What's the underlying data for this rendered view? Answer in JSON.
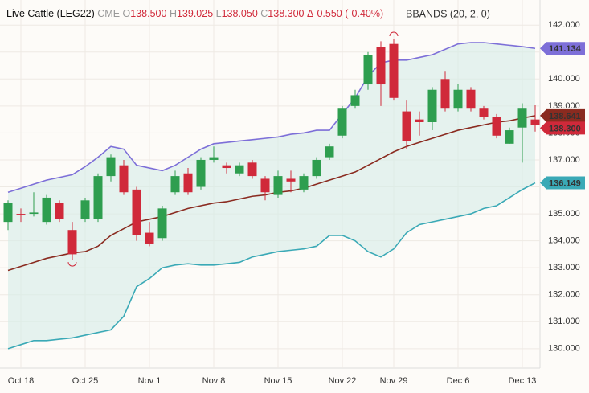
{
  "chart_data": {
    "type": "candlestick",
    "header": {
      "symbol": "Live Cattle (LEG22)",
      "exchange": "CME",
      "open": {
        "label": "O",
        "value": "138.500"
      },
      "high": {
        "label": "H",
        "value": "139.025"
      },
      "low": {
        "label": "L",
        "value": "138.050"
      },
      "close": {
        "label": "C",
        "value": "138.300"
      },
      "change": "Δ-0.550 (-0.40%)",
      "indicator": "BBANDS (20, 2, 0)"
    },
    "categories": [
      null,
      "Oct 18",
      null,
      null,
      null,
      null,
      "Oct 25",
      null,
      null,
      null,
      null,
      "Nov 1",
      null,
      null,
      null,
      null,
      "Nov 8",
      null,
      null,
      null,
      null,
      "Nov 15",
      null,
      null,
      null,
      null,
      "Nov 22",
      null,
      null,
      null,
      "Nov 29",
      null,
      null,
      null,
      null,
      "Dec 6",
      null,
      null,
      null,
      null,
      "Dec 13",
      null
    ],
    "ohlc": {
      "up_color": "#2e9e4f",
      "down_color": "#d0293a",
      "last_label": "138.300",
      "open": [
        134.7,
        135.0,
        135.0,
        134.7,
        135.4,
        134.4,
        134.8,
        134.8,
        136.4,
        136.8,
        135.9,
        134.3,
        134.1,
        135.8,
        136.5,
        136.0,
        137.0,
        136.8,
        136.5,
        136.9,
        136.3,
        135.7,
        136.3,
        135.9,
        136.4,
        137.1,
        137.9,
        139.0,
        139.8,
        141.2,
        141.3,
        138.8,
        138.5,
        138.4,
        140.0,
        138.9,
        139.6,
        138.9,
        138.6,
        137.6,
        138.2,
        138.5
      ],
      "high": [
        135.5,
        135.2,
        135.8,
        135.7,
        135.5,
        134.7,
        135.6,
        136.5,
        137.2,
        137.0,
        136.0,
        134.7,
        135.3,
        136.6,
        136.7,
        137.1,
        137.5,
        136.9,
        136.9,
        137.0,
        136.4,
        136.6,
        136.6,
        136.5,
        137.1,
        137.6,
        139.0,
        139.6,
        141.0,
        141.4,
        141.5,
        139.2,
        138.8,
        139.7,
        140.3,
        139.8,
        139.7,
        139.0,
        138.7,
        138.2,
        139.1,
        139.025
      ],
      "low": [
        134.4,
        134.7,
        134.9,
        134.6,
        134.7,
        133.3,
        134.7,
        134.7,
        136.2,
        135.7,
        134.0,
        133.8,
        134.0,
        135.7,
        135.7,
        135.9,
        136.9,
        136.5,
        136.4,
        136.3,
        135.5,
        135.6,
        135.8,
        135.8,
        136.3,
        137.0,
        137.8,
        138.9,
        139.6,
        139.0,
        139.2,
        137.4,
        137.9,
        138.1,
        138.8,
        138.8,
        138.8,
        138.5,
        137.8,
        137.6,
        136.9,
        138.05
      ],
      "close": [
        135.4,
        134.95,
        135.05,
        135.6,
        134.8,
        133.5,
        135.5,
        136.4,
        137.1,
        135.8,
        134.2,
        133.9,
        135.2,
        136.4,
        135.8,
        137.0,
        137.1,
        136.7,
        136.8,
        136.4,
        135.8,
        136.4,
        136.2,
        136.4,
        137.0,
        137.5,
        138.9,
        139.4,
        140.9,
        139.8,
        139.3,
        137.7,
        138.4,
        139.6,
        138.9,
        139.6,
        138.9,
        138.6,
        137.9,
        138.1,
        138.9,
        138.3
      ]
    },
    "series": [
      {
        "name": "upper",
        "color": "#7d6fd8",
        "last_label": "141.134",
        "values": [
          135.8,
          135.95,
          136.1,
          136.25,
          136.35,
          136.45,
          136.75,
          137.1,
          137.5,
          137.4,
          136.8,
          136.7,
          136.6,
          136.8,
          137.1,
          137.4,
          137.6,
          137.65,
          137.7,
          137.75,
          137.8,
          137.85,
          137.95,
          138.0,
          138.1,
          138.1,
          138.7,
          139.3,
          140.1,
          140.6,
          140.7,
          140.7,
          140.8,
          140.9,
          141.1,
          141.3,
          141.35,
          141.35,
          141.3,
          141.25,
          141.2,
          141.134
        ]
      },
      {
        "name": "middle",
        "color": "#8a2b20",
        "last_label": "138.641",
        "values": [
          132.9,
          133.05,
          133.2,
          133.35,
          133.45,
          133.55,
          133.6,
          133.8,
          134.2,
          134.45,
          134.7,
          134.8,
          134.9,
          135.05,
          135.2,
          135.3,
          135.4,
          135.45,
          135.55,
          135.65,
          135.7,
          135.8,
          135.85,
          135.95,
          136.1,
          136.25,
          136.4,
          136.55,
          136.8,
          137.05,
          137.3,
          137.5,
          137.65,
          137.8,
          137.95,
          138.1,
          138.2,
          138.3,
          138.4,
          138.45,
          138.55,
          138.641
        ]
      },
      {
        "name": "lower",
        "color": "#3aa9b6",
        "last_label": "136.149",
        "values": [
          130.0,
          130.15,
          130.3,
          130.3,
          130.35,
          130.4,
          130.5,
          130.6,
          130.7,
          131.2,
          132.3,
          132.6,
          133.0,
          133.1,
          133.15,
          133.1,
          133.1,
          133.15,
          133.2,
          133.4,
          133.5,
          133.6,
          133.65,
          133.7,
          133.8,
          134.2,
          134.2,
          134.0,
          133.6,
          133.4,
          133.7,
          134.3,
          134.6,
          134.7,
          134.8,
          134.9,
          135.0,
          135.2,
          135.3,
          135.6,
          135.9,
          136.149
        ]
      }
    ],
    "band_fill": "#d6ece8",
    "ylim": [
      129.28,
      142.93
    ],
    "yticks": [
      {
        "value": 130,
        "label": "130.000"
      },
      {
        "value": 131,
        "label": "131.000"
      },
      {
        "value": 132,
        "label": "132.000"
      },
      {
        "value": 133,
        "label": "133.000"
      },
      {
        "value": 134,
        "label": "134.000"
      },
      {
        "value": 135,
        "label": "135.000"
      },
      {
        "value": 136,
        "label": "136.000"
      },
      {
        "value": 137,
        "label": "137.000"
      },
      {
        "value": 138,
        "label": "138.000"
      },
      {
        "value": 139,
        "label": "139.000"
      },
      {
        "value": 140,
        "label": "140.000"
      },
      {
        "value": 141,
        "label": "141.000"
      },
      {
        "value": 142,
        "label": "142.000"
      }
    ],
    "grid": true
  }
}
